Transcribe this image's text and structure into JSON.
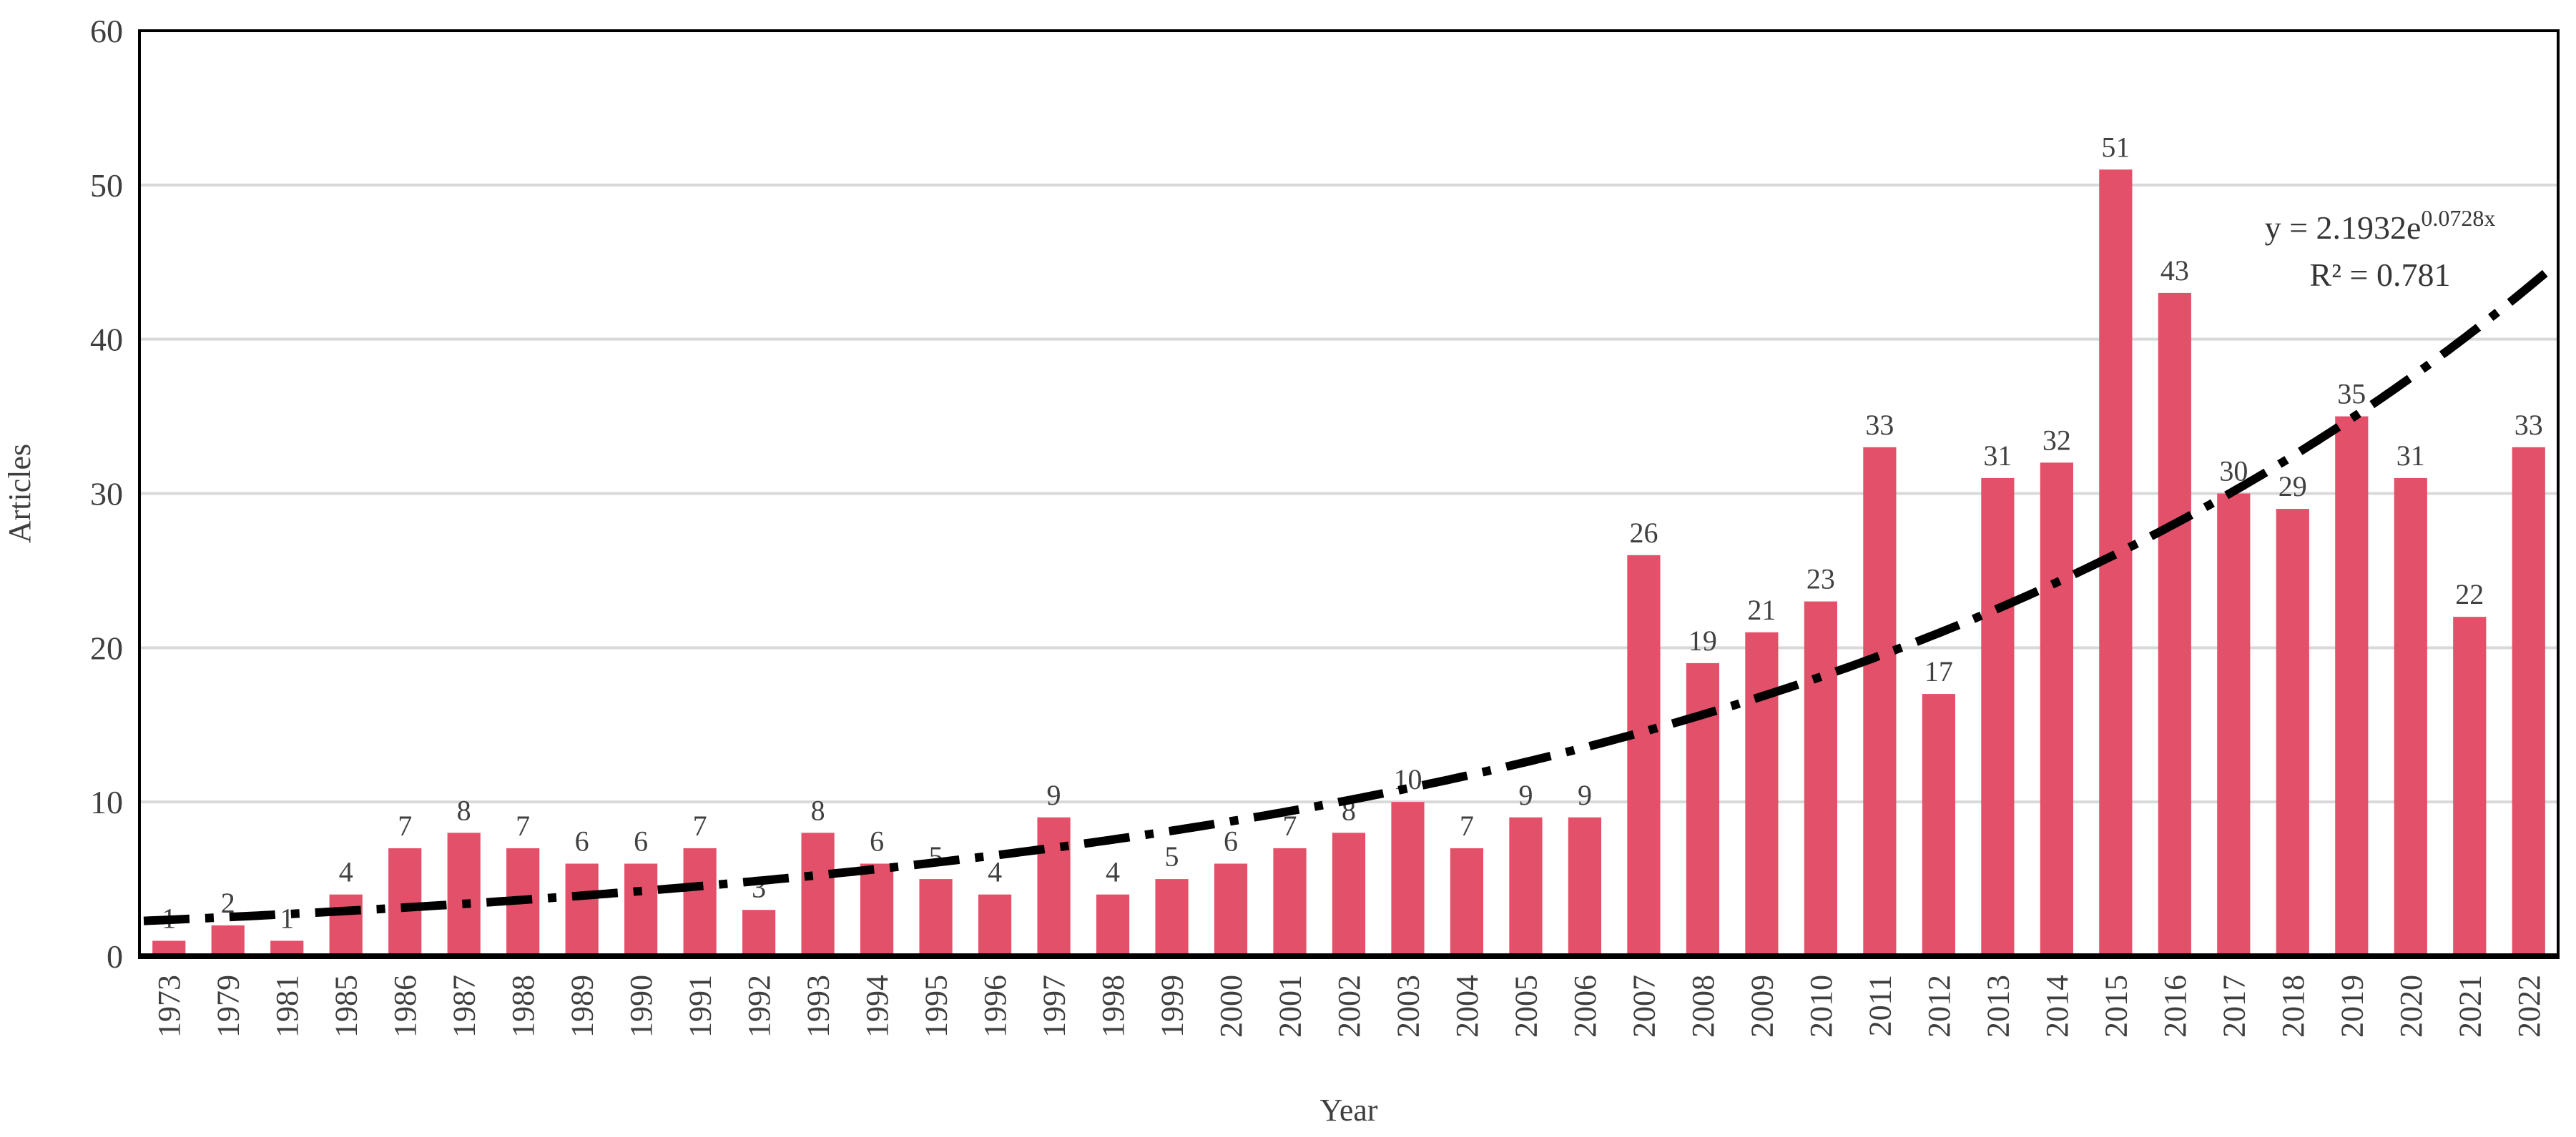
{
  "chart_data": {
    "type": "bar",
    "title": "",
    "xlabel": "Year",
    "ylabel": "Articles",
    "categories": [
      "1973",
      "1979",
      "1981",
      "1985",
      "1986",
      "1987",
      "1988",
      "1989",
      "1990",
      "1991",
      "1992",
      "1993",
      "1994",
      "1995",
      "1996",
      "1997",
      "1998",
      "1999",
      "2000",
      "2001",
      "2002",
      "2003",
      "2004",
      "2005",
      "2006",
      "2007",
      "2008",
      "2009",
      "2010",
      "2011",
      "2012",
      "2013",
      "2014",
      "2015",
      "2016",
      "2017",
      "2018",
      "2019",
      "2020",
      "2021",
      "2022"
    ],
    "values": [
      1,
      2,
      1,
      4,
      7,
      8,
      7,
      6,
      6,
      7,
      3,
      8,
      6,
      5,
      4,
      9,
      4,
      5,
      6,
      7,
      8,
      10,
      7,
      9,
      9,
      26,
      19,
      21,
      23,
      33,
      17,
      31,
      32,
      51,
      43,
      30,
      29,
      35,
      31,
      22,
      33
    ],
    "ylim": [
      0,
      60
    ],
    "yticks": [
      0,
      10,
      20,
      30,
      40,
      50,
      60
    ],
    "grid": true,
    "legend_position": "none",
    "colors": {
      "bar": "#e2506a",
      "gridline": "#d9d9d9",
      "axis": "#000000",
      "data_label": "#404040",
      "tick_label": "#3f3f3f",
      "trendline": "#000000",
      "equation_text": "#363636"
    },
    "trendline": {
      "type": "exponential",
      "a": 2.1932,
      "b": 0.0728,
      "style": "dash-dot",
      "equation_base": "y = 2.1932e",
      "equation_exponent": "0.0728x",
      "r_squared_label": "R² = 0.781"
    }
  }
}
